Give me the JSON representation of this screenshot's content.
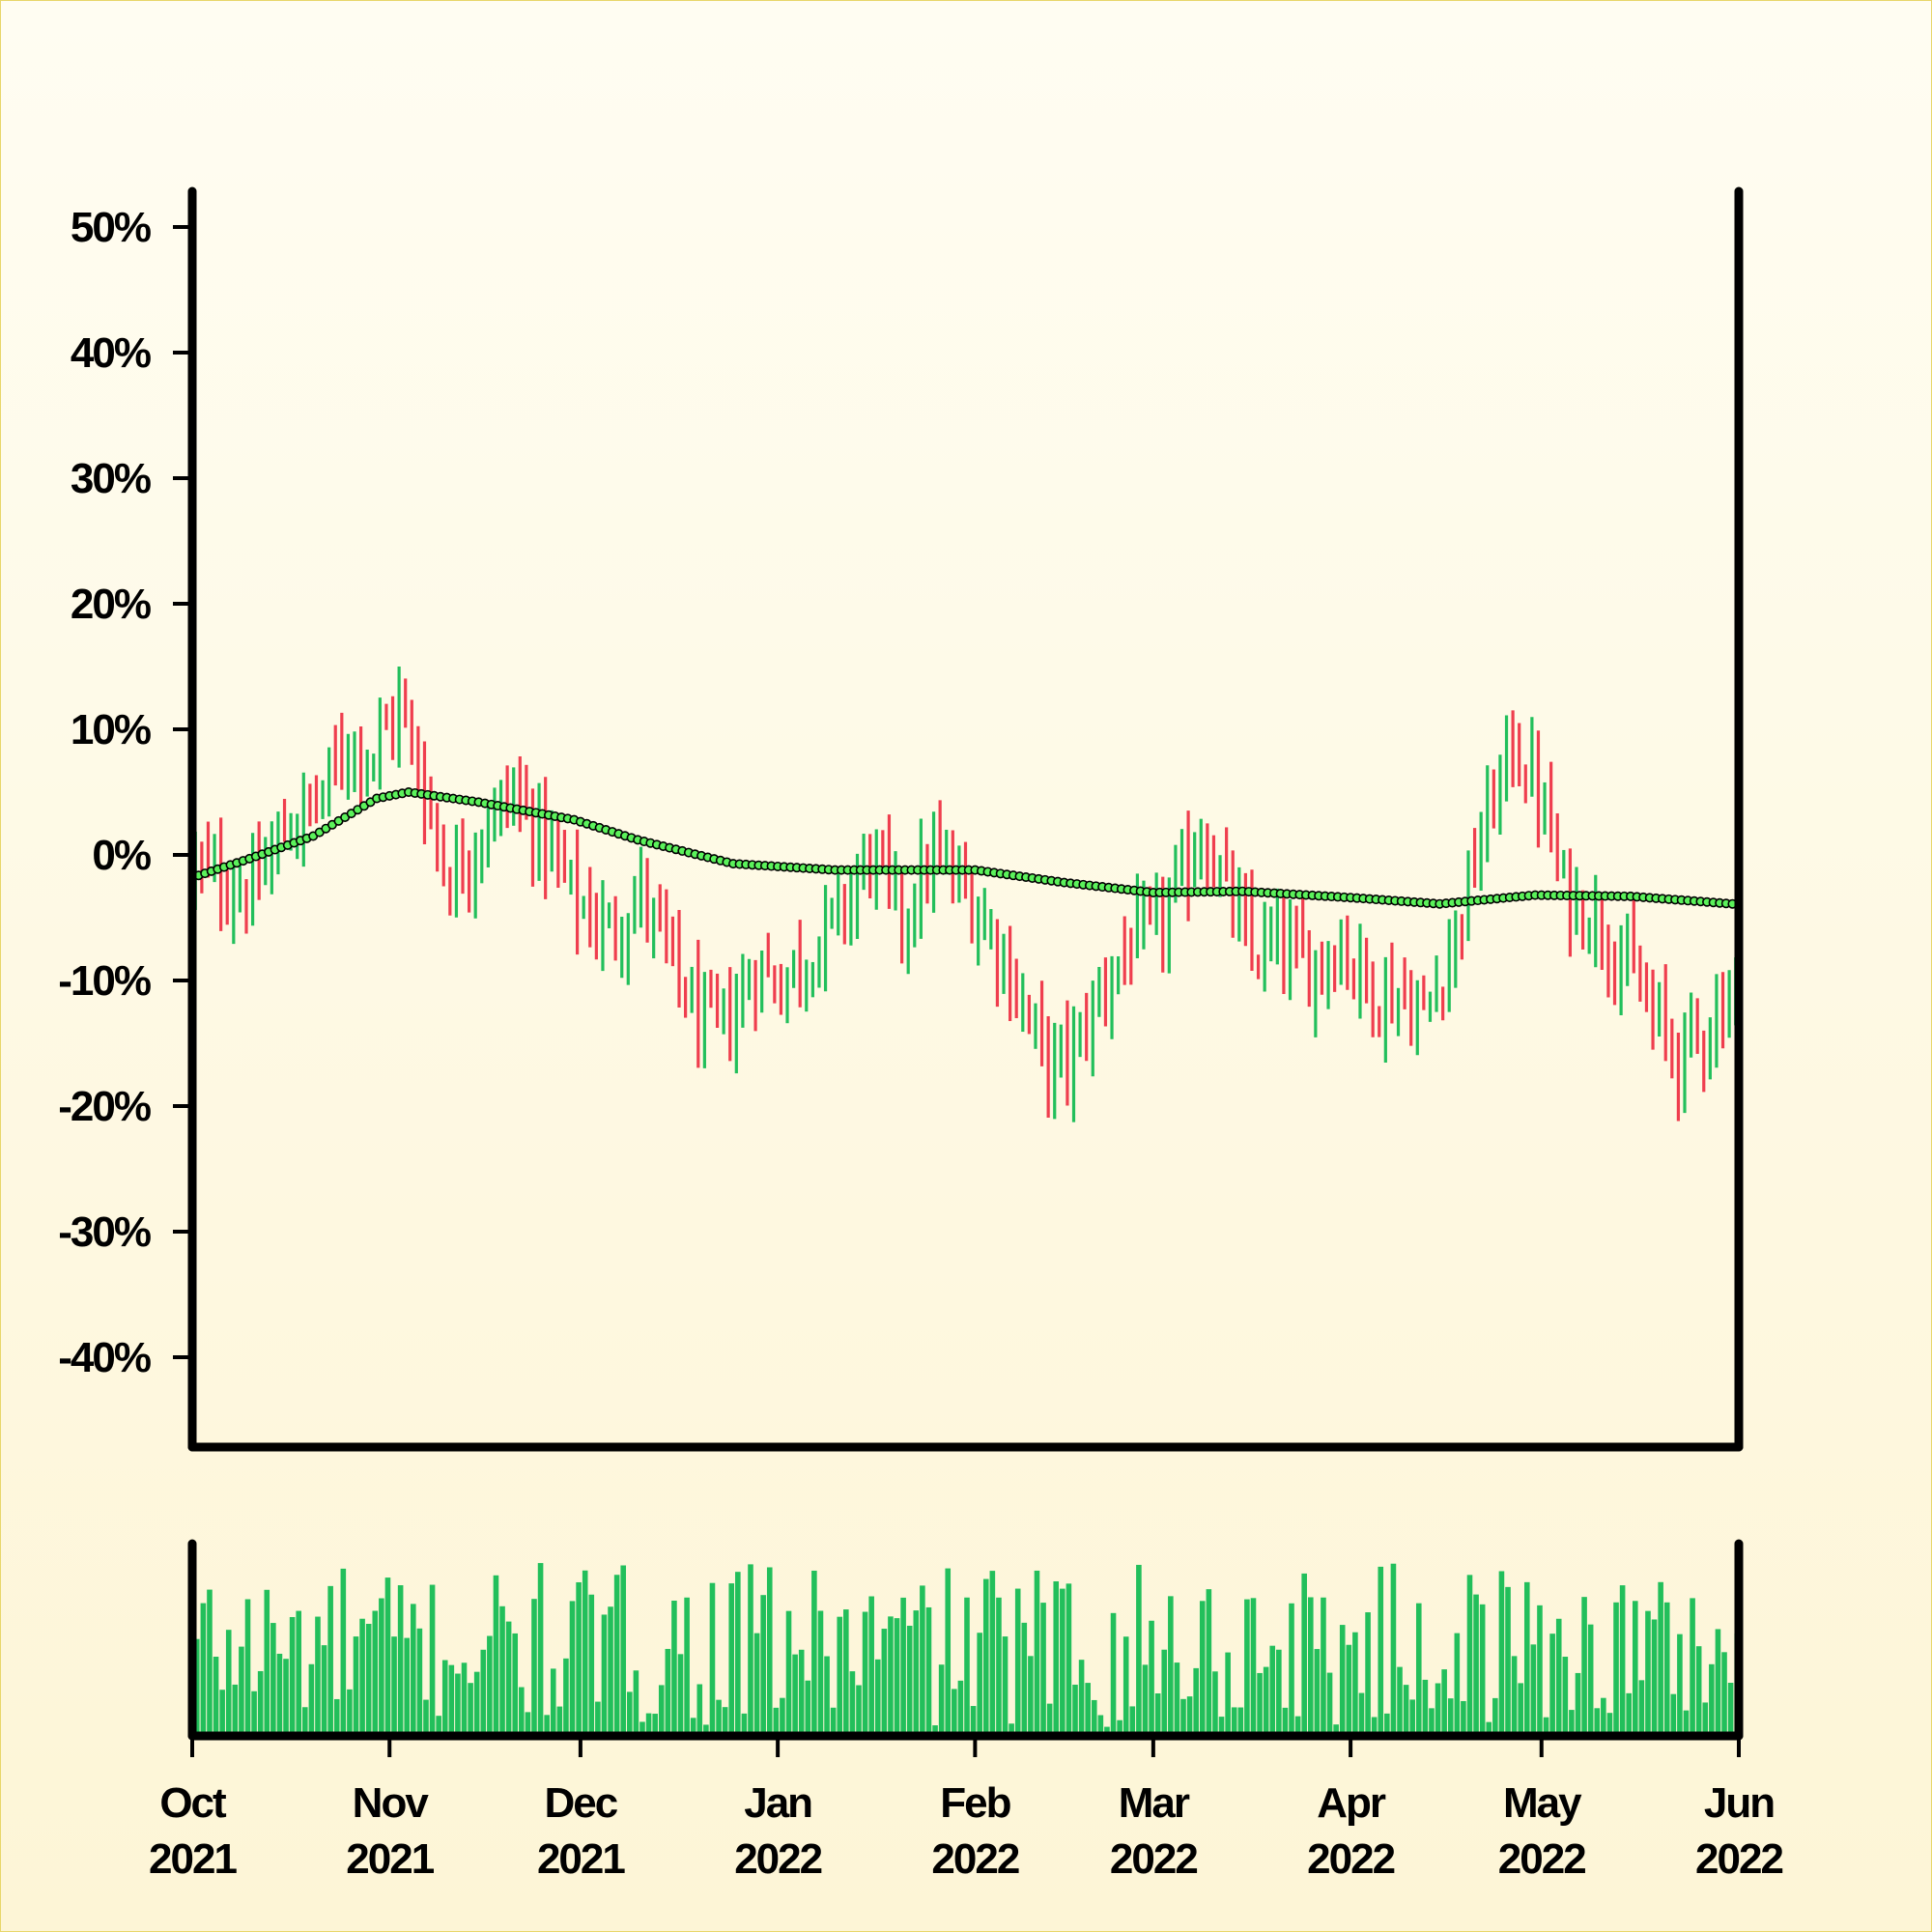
{
  "chart_data": {
    "type": "ohlc",
    "title": "",
    "xlabel": "",
    "ylabel": "",
    "ylim": [
      -46,
      53
    ],
    "y_ticks": [
      50,
      40,
      30,
      20,
      10,
      0,
      -10,
      -20,
      -30,
      -40
    ],
    "y_tick_labels": [
      "50%",
      "40%",
      "30%",
      "20%",
      "10%",
      "0%",
      "-10%",
      "-20%",
      "-30%",
      "-40%"
    ],
    "x_range": [
      "2021-10-01",
      "2022-06-01"
    ],
    "x_ticks": [
      {
        "date": "2021-10-01",
        "month": "Oct",
        "year": "2021"
      },
      {
        "date": "2021-11-01",
        "month": "Nov",
        "year": "2021"
      },
      {
        "date": "2021-12-01",
        "month": "Dec",
        "year": "2021"
      },
      {
        "date": "2022-01-01",
        "month": "Jan",
        "year": "2022"
      },
      {
        "date": "2022-02-01",
        "month": "Feb",
        "year": "2022"
      },
      {
        "date": "2022-03-01",
        "month": "Mar",
        "year": "2022"
      },
      {
        "date": "2022-04-01",
        "month": "Apr",
        "year": "2022"
      },
      {
        "date": "2022-05-01",
        "month": "May",
        "year": "2022"
      },
      {
        "date": "2022-06-01",
        "month": "Jun",
        "year": "2022"
      }
    ],
    "close_trend": [
      [
        "2021-10-01",
        -1
      ],
      [
        "2021-10-05",
        -2
      ],
      [
        "2021-10-10",
        -3
      ],
      [
        "2021-10-15",
        2
      ],
      [
        "2021-10-20",
        4
      ],
      [
        "2021-10-25",
        9
      ],
      [
        "2021-10-29",
        8
      ],
      [
        "2021-11-02",
        12
      ],
      [
        "2021-11-06",
        5
      ],
      [
        "2021-11-10",
        -2
      ],
      [
        "2021-11-15",
        2
      ],
      [
        "2021-11-20",
        5
      ],
      [
        "2021-11-25",
        1
      ],
      [
        "2021-11-30",
        -4
      ],
      [
        "2021-12-05",
        -6
      ],
      [
        "2021-12-10",
        -3
      ],
      [
        "2021-12-15",
        -9
      ],
      [
        "2021-12-20",
        -14
      ],
      [
        "2021-12-24",
        -13
      ],
      [
        "2021-12-28",
        -9
      ],
      [
        "2022-01-01",
        -10
      ],
      [
        "2022-01-05",
        -8
      ],
      [
        "2022-01-10",
        -5
      ],
      [
        "2022-01-15",
        0
      ],
      [
        "2022-01-20",
        -5
      ],
      [
        "2022-01-25",
        0
      ],
      [
        "2022-01-30",
        -3
      ],
      [
        "2022-02-04",
        -7
      ],
      [
        "2022-02-08",
        -12
      ],
      [
        "2022-02-12",
        -17
      ],
      [
        "2022-02-16",
        -16
      ],
      [
        "2022-02-20",
        -11
      ],
      [
        "2022-02-25",
        -7
      ],
      [
        "2022-03-01",
        -6
      ],
      [
        "2022-03-05",
        -2
      ],
      [
        "2022-03-08",
        2
      ],
      [
        "2022-03-12",
        -3
      ],
      [
        "2022-03-16",
        -8
      ],
      [
        "2022-03-20",
        -7
      ],
      [
        "2022-03-25",
        -9
      ],
      [
        "2022-03-30",
        -7
      ],
      [
        "2022-04-04",
        -11
      ],
      [
        "2022-04-08",
        -11
      ],
      [
        "2022-04-12",
        -13
      ],
      [
        "2022-04-17",
        -6
      ],
      [
        "2022-04-22",
        3
      ],
      [
        "2022-04-26",
        9
      ],
      [
        "2022-04-30",
        5
      ],
      [
        "2022-05-04",
        -3
      ],
      [
        "2022-05-09",
        -5
      ],
      [
        "2022-05-14",
        -9
      ],
      [
        "2022-05-18",
        -13
      ],
      [
        "2022-05-22",
        -16
      ],
      [
        "2022-05-26",
        -14
      ],
      [
        "2022-05-31",
        -10
      ]
    ],
    "moving_average": [
      [
        "2021-10-01",
        -1.8
      ],
      [
        "2021-10-10",
        -0.3
      ],
      [
        "2021-10-20",
        1.5
      ],
      [
        "2021-10-30",
        4.5
      ],
      [
        "2021-11-04",
        5
      ],
      [
        "2021-11-15",
        4.2
      ],
      [
        "2021-11-30",
        2.8
      ],
      [
        "2021-12-10",
        1.2
      ],
      [
        "2021-12-25",
        -0.7
      ],
      [
        "2022-01-10",
        -1.2
      ],
      [
        "2022-02-01",
        -1.2
      ],
      [
        "2022-02-15",
        -2.2
      ],
      [
        "2022-03-01",
        -3.0
      ],
      [
        "2022-03-15",
        -2.9
      ],
      [
        "2022-04-01",
        -3.4
      ],
      [
        "2022-04-15",
        -3.9
      ],
      [
        "2022-04-30",
        -3.2
      ],
      [
        "2022-05-15",
        -3.3
      ],
      [
        "2022-05-31",
        -3.9
      ]
    ],
    "colors": {
      "up": "#22bf5b",
      "down": "#ef3e4e",
      "ma_fill": "#5bf25b",
      "ma_stroke": "#000000",
      "volume": "#22bf5b",
      "axis": "#000000"
    },
    "volume": {
      "max_units": 100
    }
  }
}
